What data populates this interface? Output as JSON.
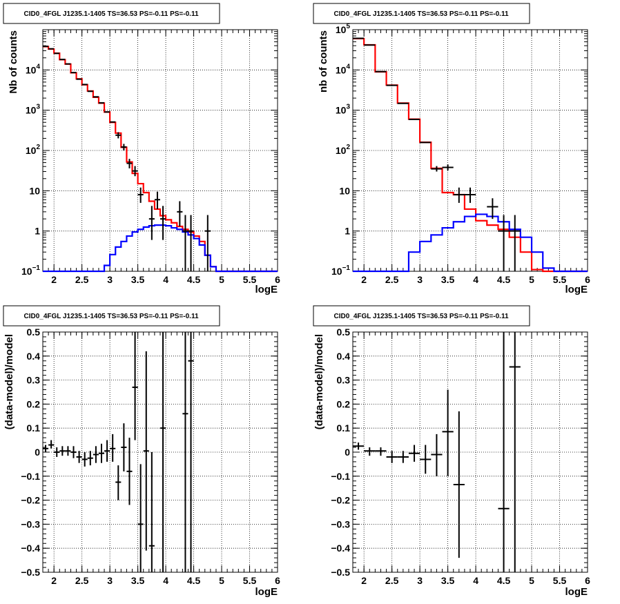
{
  "chart_data": [
    {
      "type": "line",
      "title": "CID0_4FGL J1235.1-1405 TS=36.53 PS=-0.11 PS=-0.11",
      "xlabel": "logE",
      "ylabel": "Nb of counts",
      "xlim": [
        1.8,
        6.0
      ],
      "ylim": [
        0.1,
        100000
      ],
      "log_y": true,
      "grid": true,
      "x_ticks": [
        2,
        2.5,
        3,
        3.5,
        4,
        4.5,
        5,
        5.5,
        6
      ],
      "y_ticks": [
        {
          "value": 0.1,
          "base": "10",
          "exp": "−1"
        },
        {
          "value": 1,
          "label": "1"
        },
        {
          "value": 10,
          "label": "10"
        },
        {
          "value": 100,
          "base": "10",
          "exp": "2"
        },
        {
          "value": 1000,
          "base": "10",
          "exp": "3"
        },
        {
          "value": 10000,
          "base": "10",
          "exp": "4"
        }
      ],
      "bin_edges": [
        1.8,
        1.9,
        2.0,
        2.1,
        2.2,
        2.3,
        2.4,
        2.5,
        2.6,
        2.7,
        2.8,
        2.9,
        3.0,
        3.1,
        3.2,
        3.3,
        3.4,
        3.5,
        3.6,
        3.7,
        3.8,
        3.9,
        4.0,
        4.1,
        4.2,
        4.3,
        4.4,
        4.5,
        4.6,
        4.7,
        4.8,
        4.9,
        5.0,
        5.1,
        5.2,
        5.3,
        5.4,
        5.5,
        5.6,
        5.7,
        5.8,
        5.9,
        6.0
      ],
      "series": [
        {
          "color": "#ff0000",
          "values": [
            38000,
            33000,
            26000,
            18000,
            14000,
            8500,
            6000,
            4300,
            3000,
            2100,
            1500,
            900,
            500,
            270,
            120,
            52,
            27,
            15,
            9,
            5.5,
            3.5,
            2.4,
            1.9,
            1.6,
            1.3,
            1.1,
            0.95,
            0.75,
            0.55,
            0.25,
            0.13,
            0.1,
            0.1,
            0.1,
            0.1,
            0.1,
            0.1,
            0.1,
            0.1,
            0.1,
            0.1,
            0.1
          ]
        },
        {
          "color": "#0000ff",
          "values": [
            0.1,
            0.1,
            0.1,
            0.1,
            0.1,
            0.1,
            0.1,
            0.1,
            0.1,
            0.1,
            0.1,
            0.14,
            0.26,
            0.4,
            0.55,
            0.75,
            0.95,
            1.1,
            1.25,
            1.35,
            1.4,
            1.4,
            1.35,
            1.2,
            1.1,
            0.95,
            0.8,
            0.65,
            0.45,
            0.25,
            0.13,
            0.1,
            0.1,
            0.1,
            0.1,
            0.1,
            0.1,
            0.1,
            0.1,
            0.1,
            0.1,
            0.1
          ]
        }
      ],
      "points": [
        {
          "x": 1.85,
          "y": 38500
        },
        {
          "x": 1.95,
          "y": 33500
        },
        {
          "x": 2.05,
          "y": 25800
        },
        {
          "x": 2.15,
          "y": 18200
        },
        {
          "x": 2.25,
          "y": 14100
        },
        {
          "x": 2.35,
          "y": 8600
        },
        {
          "x": 2.45,
          "y": 5900
        },
        {
          "x": 2.55,
          "y": 4350
        },
        {
          "x": 2.65,
          "y": 2950
        },
        {
          "x": 2.75,
          "y": 2150
        },
        {
          "x": 2.85,
          "y": 1520
        },
        {
          "x": 2.95,
          "y": 905
        },
        {
          "x": 3.05,
          "y": 510
        },
        {
          "x": 3.15,
          "y": 240,
          "lo": 200,
          "hi": 285
        },
        {
          "x": 3.25,
          "y": 122,
          "lo": 100,
          "hi": 146
        },
        {
          "x": 3.35,
          "y": 48,
          "lo": 36,
          "hi": 62
        },
        {
          "x": 3.45,
          "y": 31,
          "lo": 23,
          "hi": 41
        },
        {
          "x": 3.55,
          "y": 8,
          "lo": 5,
          "hi": 12
        },
        {
          "x": 3.75,
          "y": 2,
          "lo": 0.6,
          "hi": 4.2
        },
        {
          "x": 3.85,
          "y": 6,
          "lo": 3.5,
          "hi": 9.5
        },
        {
          "x": 3.95,
          "y": 2,
          "lo": 0.6,
          "hi": 4.2
        },
        {
          "x": 4.25,
          "y": 3,
          "lo": 1.3,
          "hi": 5.5
        },
        {
          "x": 4.35,
          "y": 1,
          "lo": 0.1,
          "hi": 2.5
        },
        {
          "x": 4.45,
          "y": 1,
          "lo": 0.1,
          "hi": 2.5
        },
        {
          "x": 4.75,
          "y": 1,
          "lo": 0.1,
          "hi": 2.5
        }
      ],
      "point_xerr": 0.05
    },
    {
      "type": "line",
      "title": "CID0_4FGL J1235.1-1405 TS=36.53 PS=-0.11 PS=-0.11",
      "xlabel": "logE",
      "ylabel": "nb of counts",
      "xlim": [
        1.8,
        6.0
      ],
      "ylim": [
        0.1,
        100000
      ],
      "log_y": true,
      "grid": true,
      "x_ticks": [
        2,
        2.5,
        3,
        3.5,
        4,
        4.5,
        5,
        5.5,
        6
      ],
      "y_ticks": [
        {
          "value": 0.1,
          "base": "10",
          "exp": "−1"
        },
        {
          "value": 1,
          "label": "1"
        },
        {
          "value": 10,
          "label": "10"
        },
        {
          "value": 100,
          "base": "10",
          "exp": "2"
        },
        {
          "value": 1000,
          "base": "10",
          "exp": "3"
        },
        {
          "value": 10000,
          "base": "10",
          "exp": "4"
        },
        {
          "value": 100000,
          "base": "10",
          "exp": "5"
        }
      ],
      "bin_edges": [
        1.8,
        2.0,
        2.2,
        2.4,
        2.6,
        2.8,
        3.0,
        3.2,
        3.4,
        3.6,
        3.8,
        4.0,
        4.2,
        4.4,
        4.6,
        4.8,
        5.0,
        5.2,
        5.4,
        5.6,
        5.8,
        6.0
      ],
      "series": [
        {
          "color": "#ff0000",
          "values": [
            60000,
            42000,
            9000,
            4200,
            1500,
            600,
            160,
            36,
            9,
            8,
            3.5,
            1.8,
            1.4,
            1.1,
            0.7,
            0.3,
            0.11,
            0.1,
            0.1,
            0.1,
            0.1
          ]
        },
        {
          "color": "#0000ff",
          "values": [
            0.1,
            0.1,
            0.1,
            0.1,
            0.1,
            0.3,
            0.55,
            0.8,
            1.2,
            1.7,
            2.3,
            2.6,
            2.3,
            1.7,
            1.1,
            0.7,
            0.3,
            0.12,
            0.1,
            0.1,
            0.1
          ]
        }
      ],
      "points": [
        {
          "x": 1.9,
          "y": 61000
        },
        {
          "x": 2.1,
          "y": 41500
        },
        {
          "x": 2.3,
          "y": 9100
        },
        {
          "x": 2.5,
          "y": 4150
        },
        {
          "x": 2.7,
          "y": 1480
        },
        {
          "x": 2.9,
          "y": 590
        },
        {
          "x": 3.1,
          "y": 158
        },
        {
          "x": 3.3,
          "y": 35,
          "lo": 30,
          "hi": 41
        },
        {
          "x": 3.5,
          "y": 38,
          "lo": 32,
          "hi": 45
        },
        {
          "x": 3.7,
          "y": 8,
          "lo": 5,
          "hi": 12
        },
        {
          "x": 3.9,
          "y": 8,
          "lo": 5,
          "hi": 12
        },
        {
          "x": 4.3,
          "y": 4,
          "lo": 2,
          "hi": 6.5
        },
        {
          "x": 4.5,
          "y": 1,
          "lo": 0.1,
          "hi": 2.5
        },
        {
          "x": 4.7,
          "y": 1,
          "lo": 0.1,
          "hi": 2.5
        }
      ],
      "point_xerr": 0.1
    },
    {
      "type": "scatter",
      "title": "CID0_4FGL J1235.1-1405 TS=36.53 PS=-0.11 PS=-0.11",
      "xlabel": "logE",
      "ylabel": "(data-model)/model",
      "xlim": [
        1.8,
        6.0
      ],
      "ylim": [
        -0.5,
        0.5
      ],
      "grid": true,
      "x_ticks": [
        2,
        2.5,
        3,
        3.5,
        4,
        4.5,
        5,
        5.5,
        6
      ],
      "y_ticks": [
        -0.5,
        -0.4,
        -0.3,
        -0.2,
        -0.1,
        0,
        0.1,
        0.2,
        0.3,
        0.4,
        0.5
      ],
      "points": [
        {
          "x": 1.85,
          "y": 0.015,
          "lo": 0.0,
          "hi": 0.03
        },
        {
          "x": 1.95,
          "y": 0.03,
          "lo": 0.015,
          "hi": 0.05
        },
        {
          "x": 2.05,
          "y": 0.0,
          "lo": -0.02,
          "hi": 0.02
        },
        {
          "x": 2.15,
          "y": 0.005,
          "lo": -0.015,
          "hi": 0.025
        },
        {
          "x": 2.25,
          "y": 0.005,
          "lo": -0.015,
          "hi": 0.025
        },
        {
          "x": 2.35,
          "y": 0.0,
          "lo": -0.025,
          "hi": 0.025
        },
        {
          "x": 2.45,
          "y": -0.02,
          "lo": -0.045,
          "hi": 0.005
        },
        {
          "x": 2.55,
          "y": -0.03,
          "lo": -0.06,
          "hi": 0.0
        },
        {
          "x": 2.65,
          "y": -0.025,
          "lo": -0.055,
          "hi": 0.005
        },
        {
          "x": 2.75,
          "y": -0.01,
          "lo": -0.045,
          "hi": 0.025
        },
        {
          "x": 2.85,
          "y": -0.005,
          "lo": -0.045,
          "hi": 0.035
        },
        {
          "x": 2.95,
          "y": 0.005,
          "lo": -0.04,
          "hi": 0.05
        },
        {
          "x": 3.05,
          "y": 0.015,
          "lo": -0.04,
          "hi": 0.075
        },
        {
          "x": 3.15,
          "y": -0.125,
          "lo": -0.2,
          "hi": -0.055
        },
        {
          "x": 3.25,
          "y": 0.02,
          "lo": -0.08,
          "hi": 0.12
        },
        {
          "x": 3.35,
          "y": -0.08,
          "lo": -0.22,
          "hi": 0.06
        },
        {
          "x": 3.45,
          "y": 0.27,
          "lo": 0.05,
          "hi": 0.5
        },
        {
          "x": 3.55,
          "y": -0.3,
          "lo": -0.5,
          "hi": -0.05
        },
        {
          "x": 3.65,
          "y": 0.005,
          "lo": -0.41,
          "hi": 0.42
        },
        {
          "x": 3.75,
          "y": -0.39,
          "lo": -0.5,
          "hi": 0.0
        },
        {
          "x": 3.95,
          "y": 0.1,
          "lo": -0.5,
          "hi": 0.5
        },
        {
          "x": 4.35,
          "y": 0.16,
          "lo": -0.5,
          "hi": 0.5
        },
        {
          "x": 4.45,
          "y": 0.38,
          "lo": -0.5,
          "hi": 0.5
        }
      ],
      "point_xerr": 0.05
    },
    {
      "type": "scatter",
      "title": "CID0_4FGL J1235.1-1405 TS=36.53 PS=-0.11 PS=-0.11",
      "xlabel": "logE",
      "ylabel": "(data-model)/model",
      "xlim": [
        1.8,
        6.0
      ],
      "ylim": [
        -0.5,
        0.5
      ],
      "grid": true,
      "x_ticks": [
        2,
        2.5,
        3,
        3.5,
        4,
        4.5,
        5,
        5.5,
        6
      ],
      "y_ticks": [
        -0.5,
        -0.4,
        -0.3,
        -0.2,
        -0.1,
        0,
        0.1,
        0.2,
        0.3,
        0.4,
        0.5
      ],
      "points": [
        {
          "x": 1.9,
          "y": 0.025,
          "lo": 0.01,
          "hi": 0.04
        },
        {
          "x": 2.1,
          "y": 0.005,
          "lo": -0.015,
          "hi": 0.02
        },
        {
          "x": 2.3,
          "y": 0.005,
          "lo": -0.015,
          "hi": 0.02
        },
        {
          "x": 2.5,
          "y": -0.02,
          "lo": -0.045,
          "hi": 0.005
        },
        {
          "x": 2.7,
          "y": -0.02,
          "lo": -0.045,
          "hi": 0.005
        },
        {
          "x": 2.9,
          "y": -0.005,
          "lo": -0.04,
          "hi": 0.03
        },
        {
          "x": 3.1,
          "y": -0.03,
          "lo": -0.09,
          "hi": 0.03
        },
        {
          "x": 3.3,
          "y": -0.01,
          "lo": -0.1,
          "hi": 0.075
        },
        {
          "x": 3.5,
          "y": 0.085,
          "lo": -0.1,
          "hi": 0.26
        },
        {
          "x": 3.7,
          "y": -0.135,
          "lo": -0.44,
          "hi": 0.17
        },
        {
          "x": 4.5,
          "y": -0.235,
          "lo": -0.5,
          "hi": 0.5
        },
        {
          "x": 4.7,
          "y": 0.355,
          "lo": -0.5,
          "hi": 0.5
        }
      ],
      "point_xerr": 0.1
    }
  ]
}
